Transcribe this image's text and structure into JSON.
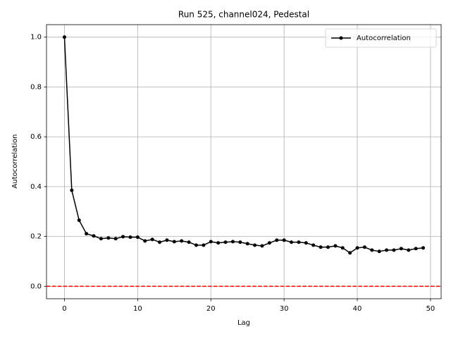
{
  "chart_data": {
    "type": "line",
    "title": "Run 525, channel024, Pedestal",
    "x_label": "Lag",
    "y_label": "Autocorrelation",
    "x": [
      0,
      1,
      2,
      3,
      4,
      5,
      6,
      7,
      8,
      9,
      10,
      11,
      12,
      13,
      14,
      15,
      16,
      17,
      18,
      19,
      20,
      21,
      22,
      23,
      24,
      25,
      26,
      27,
      28,
      29,
      30,
      31,
      32,
      33,
      34,
      35,
      36,
      37,
      38,
      39,
      40,
      41,
      42,
      43,
      44,
      45,
      46,
      47,
      48,
      49
    ],
    "series": [
      {
        "name": "Autocorrelation",
        "color": "#000000",
        "values": [
          1.0,
          0.385,
          0.265,
          0.211,
          0.202,
          0.191,
          0.194,
          0.191,
          0.199,
          0.197,
          0.197,
          0.182,
          0.188,
          0.177,
          0.185,
          0.179,
          0.182,
          0.177,
          0.165,
          0.165,
          0.179,
          0.174,
          0.177,
          0.179,
          0.177,
          0.171,
          0.165,
          0.162,
          0.174,
          0.185,
          0.185,
          0.177,
          0.177,
          0.174,
          0.165,
          0.157,
          0.157,
          0.162,
          0.154,
          0.134,
          0.154,
          0.157,
          0.145,
          0.14,
          0.145,
          0.145,
          0.151,
          0.145,
          0.151,
          0.154
        ]
      }
    ],
    "reference_line": {
      "value": 0,
      "color": "#ff0000"
    },
    "xlim": [
      -2.45,
      51.45
    ],
    "xticks": [
      0,
      10,
      20,
      30,
      40,
      50
    ],
    "ylim": [
      -0.05,
      1.05
    ],
    "yticks": [
      {
        "value": 0,
        "label": "0.0"
      },
      0.2,
      0.4,
      0.6,
      0.8,
      {
        "value": 1,
        "label": "1.0"
      }
    ],
    "grid": true,
    "legend": "upper right"
  }
}
